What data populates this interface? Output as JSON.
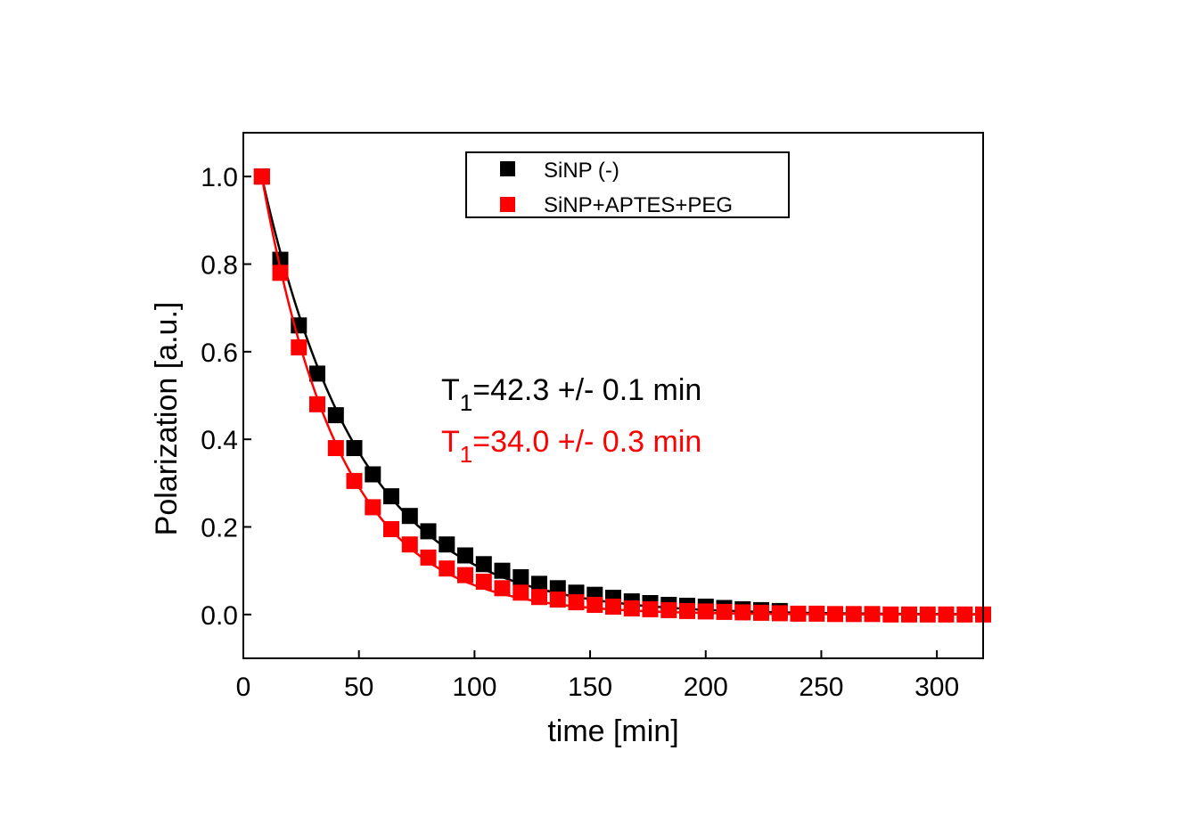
{
  "chart_data": {
    "type": "scatter",
    "title": "",
    "xlabel": "time [min]",
    "ylabel": "Polarization [a.u.]",
    "xlim": [
      0,
      320
    ],
    "ylim": [
      -0.1,
      1.1
    ],
    "xticks": [
      0,
      50,
      100,
      150,
      200,
      250,
      300
    ],
    "xtick_labels": [
      "0",
      "50",
      "100",
      "150",
      "200",
      "250",
      "300"
    ],
    "yticks": [
      0.0,
      0.2,
      0.4,
      0.6,
      0.8,
      1.0
    ],
    "ytick_labels": [
      "0.0",
      "0.2",
      "0.4",
      "0.6",
      "0.8",
      "1.0"
    ],
    "grid": false,
    "legend_position": "top-center",
    "series": [
      {
        "name": "SiNP (-)",
        "color": "#000000",
        "marker": "square",
        "T1": 42.3,
        "x": [
          8,
          16,
          24,
          32,
          40,
          48,
          56,
          64,
          72,
          80,
          88,
          96,
          104,
          112,
          120,
          128,
          136,
          144,
          152,
          160,
          168,
          176,
          184,
          192,
          200,
          208,
          216,
          224,
          232
        ],
        "y": [
          1.0,
          0.81,
          0.66,
          0.55,
          0.455,
          0.38,
          0.32,
          0.27,
          0.225,
          0.19,
          0.16,
          0.135,
          0.115,
          0.1,
          0.085,
          0.07,
          0.06,
          0.05,
          0.045,
          0.038,
          0.03,
          0.026,
          0.022,
          0.02,
          0.018,
          0.015,
          0.012,
          0.01,
          0.008
        ]
      },
      {
        "name": "SiNP+APTES+PEG",
        "color": "#ff0000",
        "marker": "square",
        "T1": 34.0,
        "x": [
          8,
          16,
          24,
          32,
          40,
          48,
          56,
          64,
          72,
          80,
          88,
          96,
          104,
          112,
          120,
          128,
          136,
          144,
          152,
          160,
          168,
          176,
          184,
          192,
          200,
          208,
          216,
          224,
          232,
          240,
          248,
          256,
          264,
          272,
          280,
          288,
          296,
          304,
          312,
          320
        ],
        "y": [
          1.0,
          0.78,
          0.61,
          0.48,
          0.38,
          0.305,
          0.245,
          0.195,
          0.16,
          0.13,
          0.105,
          0.09,
          0.075,
          0.06,
          0.05,
          0.04,
          0.034,
          0.028,
          0.022,
          0.018,
          0.014,
          0.012,
          0.01,
          0.008,
          0.007,
          0.006,
          0.005,
          0.004,
          0.003,
          0.002,
          0.002,
          0.001,
          0.001,
          0.001,
          0.0,
          0.0,
          0.0,
          0.0,
          0.0,
          0.0
        ]
      }
    ],
    "annotations": [
      {
        "prefix": "T",
        "subscript": "1",
        "text": "=42.3 +/- 0.1 min",
        "color": "#000000"
      },
      {
        "prefix": "T",
        "subscript": "1",
        "text": "=34.0 +/- 0.3 min",
        "color": "#ff0000"
      }
    ]
  }
}
